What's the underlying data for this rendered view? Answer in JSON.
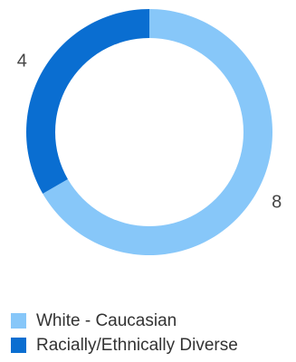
{
  "chart_data": {
    "type": "pie",
    "style": "donut",
    "slices": [
      {
        "label": "White - Caucasian",
        "value": 8,
        "color": "#87c7f9"
      },
      {
        "label": "Racially/Ethnically Diverse",
        "value": 4,
        "color": "#0a6ed1"
      }
    ],
    "data_labels": [
      "8",
      "4"
    ],
    "legend_position": "bottom-left",
    "start_angle": "12 o'clock",
    "direction": "clockwise"
  }
}
